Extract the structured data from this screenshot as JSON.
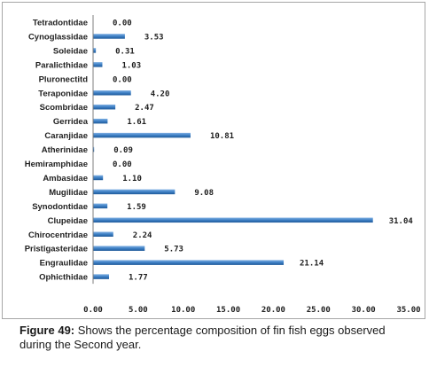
{
  "caption": {
    "label": "Figure 49:",
    "text": " Shows the percentage composition of fin fish eggs observed during the Second year."
  },
  "colors": {
    "bar": "#3d7fc4",
    "bar_dark": "#1f5a99",
    "axis": "#7f7f7f",
    "text": "#1f1f1f"
  },
  "chart_data": {
    "type": "bar",
    "orientation": "horizontal",
    "categories": [
      "Tetradontidae",
      "Cynoglassidae",
      "Soleidae",
      "Paralicthidae",
      "Pluronectitd",
      "Teraponidae",
      "Scombridae",
      "Gerridea",
      "Caranjidae",
      "Atherinidae",
      "Hemiramphidae",
      "Ambasidae",
      "Mugilidae",
      "Synodontidae",
      "Clupeidae",
      "Chirocentridae",
      "Pristigasteridae",
      "Engraulidae",
      "Ophicthidae"
    ],
    "values": [
      0,
      3.53,
      0.31,
      1.03,
      0,
      4.2,
      2.47,
      1.61,
      10.81,
      0.09,
      0,
      1.1,
      9.08,
      1.59,
      31.04,
      2.24,
      5.73,
      21.14,
      1.77
    ],
    "value_labels": [
      "0.00",
      "3.53",
      "0.31",
      "1.03",
      "0.00",
      "4.20",
      "2.47",
      "1.61",
      "10.81",
      "0.09",
      "0.00",
      "1.10",
      "9.08",
      "1.59",
      "31.04",
      "2.24",
      "5.73",
      "21.14",
      "1.77"
    ],
    "xlim": [
      0,
      35
    ],
    "xticks": [
      "0.00",
      "5.00",
      "10.00",
      "15.00",
      "20.00",
      "25.00",
      "30.00",
      "35.00"
    ],
    "grid": false,
    "legend": "none"
  }
}
